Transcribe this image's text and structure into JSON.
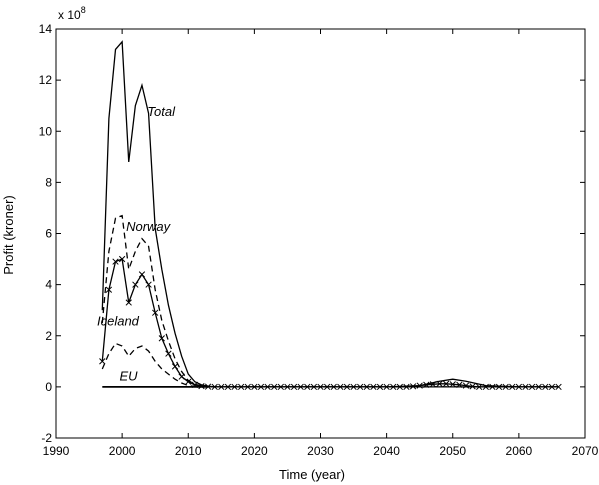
{
  "chart_data": {
    "type": "line",
    "title": "",
    "xlabel": "Time (year)",
    "ylabel": "Profit (kroner)",
    "y_exponent_label": "x 10",
    "y_exponent_power": "8",
    "xlim": [
      1990,
      2070
    ],
    "ylim": [
      -2,
      14
    ],
    "xticks": [
      1990,
      2000,
      2010,
      2020,
      2030,
      2040,
      2050,
      2060,
      2070
    ],
    "yticks": [
      -2,
      0,
      2,
      4,
      6,
      8,
      10,
      12,
      14
    ],
    "grid": false,
    "legend": "none",
    "series": [
      {
        "label": "Total",
        "style": "solid",
        "marker": "none",
        "x": [
          1997,
          1998,
          1999,
          2000,
          2001,
          2002,
          2003,
          2004,
          2005,
          2006,
          2007,
          2008,
          2009,
          2010,
          2011,
          2012,
          2013,
          2014,
          2016,
          2020,
          2030,
          2040,
          2045,
          2048,
          2050,
          2052,
          2055,
          2060,
          2066
        ],
        "y": [
          3.0,
          10.5,
          13.2,
          13.5,
          8.8,
          11.0,
          11.8,
          10.7,
          6.2,
          4.6,
          3.2,
          2.1,
          1.2,
          0.5,
          0.2,
          0.08,
          0.03,
          0.0,
          0.0,
          0.0,
          0.0,
          0.0,
          0.05,
          0.22,
          0.3,
          0.22,
          0.05,
          0.0,
          0.0
        ]
      },
      {
        "label": "Norway",
        "style": "dashed",
        "marker": "none",
        "x": [
          1997,
          1998,
          1999,
          2000,
          2001,
          2002,
          2003,
          2004,
          2005,
          2006,
          2007,
          2008,
          2009,
          2010,
          2011,
          2012,
          2013,
          2014,
          2066
        ],
        "y": [
          2.5,
          5.3,
          6.6,
          6.7,
          4.6,
          5.3,
          5.8,
          5.5,
          3.8,
          2.6,
          1.8,
          1.1,
          0.6,
          0.25,
          0.1,
          0.04,
          0.02,
          0.0,
          0.0
        ]
      },
      {
        "label": "Iceland",
        "style": "solid",
        "marker": "x",
        "x": [
          1997,
          1998,
          1999,
          2000,
          2001,
          2002,
          2003,
          2004,
          2005,
          2006,
          2007,
          2008,
          2009,
          2010,
          2011,
          2012,
          2013,
          2014,
          2015,
          2016,
          2017,
          2018,
          2019,
          2020,
          2021,
          2022,
          2023,
          2024,
          2025,
          2026,
          2027,
          2028,
          2029,
          2030,
          2031,
          2032,
          2033,
          2034,
          2035,
          2036,
          2037,
          2038,
          2039,
          2040,
          2041,
          2042,
          2043,
          2044,
          2045,
          2046,
          2047,
          2048,
          2049,
          2050,
          2051,
          2052,
          2053,
          2054,
          2055,
          2056,
          2057,
          2058,
          2059,
          2060,
          2061,
          2062,
          2063,
          2064,
          2065,
          2066
        ],
        "y": [
          1.0,
          3.8,
          4.9,
          5.0,
          3.3,
          4.0,
          4.4,
          4.0,
          2.9,
          1.9,
          1.3,
          0.8,
          0.4,
          0.2,
          0.08,
          0.03,
          0.01,
          0.0,
          0.0,
          0.0,
          0.0,
          0.0,
          0.0,
          0.0,
          0.0,
          0.0,
          0.0,
          0.0,
          0.0,
          0.0,
          0.0,
          0.0,
          0.0,
          0.0,
          0.0,
          0.0,
          0.0,
          0.0,
          0.0,
          0.0,
          0.0,
          0.0,
          0.0,
          0.0,
          0.0,
          0.0,
          0.0,
          0.02,
          0.05,
          0.08,
          0.1,
          0.12,
          0.12,
          0.1,
          0.08,
          0.05,
          0.02,
          0.0,
          0.0,
          0.0,
          0.0,
          0.0,
          0.0,
          0.0,
          0.0,
          0.0,
          0.0,
          0.0,
          0.0,
          0.0
        ]
      },
      {
        "label": "EU",
        "style": "dashed",
        "marker": "none",
        "x": [
          1997,
          1998,
          1999,
          2000,
          2001,
          2002,
          2003,
          2004,
          2005,
          2006,
          2007,
          2008,
          2009,
          2010,
          2011,
          2012,
          2013,
          2066
        ],
        "y": [
          0.7,
          1.3,
          1.7,
          1.6,
          1.2,
          1.5,
          1.6,
          1.4,
          1.0,
          0.7,
          0.5,
          0.3,
          0.15,
          0.05,
          0.02,
          0.0,
          0.0,
          0.0
        ]
      },
      {
        "label": "",
        "style": "solid",
        "marker": "none",
        "x": [
          1997,
          2013
        ],
        "y": [
          0.0,
          0.0
        ]
      }
    ],
    "annotations": [
      {
        "text": "Total",
        "x": 2003.8,
        "y": 10.6
      },
      {
        "text": "Norway",
        "x": 2000.6,
        "y": 6.1
      },
      {
        "text": "Iceland",
        "x": 1996.2,
        "y": 2.4
      },
      {
        "text": "EU",
        "x": 1999.6,
        "y": 0.25
      }
    ]
  }
}
